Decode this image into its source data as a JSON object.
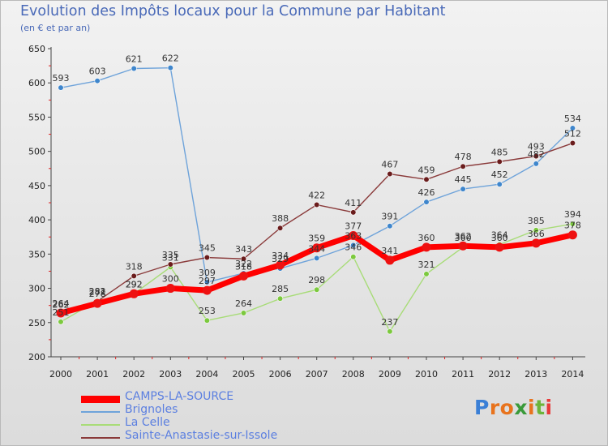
{
  "title": "Evolution des Impôts locaux pour la Commune par Habitant",
  "subtitle": "(en € et par an)",
  "logo": {
    "text": "Proxiti",
    "colors": [
      "#3a7fd6",
      "#e8731d",
      "#e8731d",
      "#3a9a3a",
      "#e8731d",
      "#6cb43a",
      "#e83a3a"
    ]
  },
  "chart_data": {
    "type": "line",
    "x": [
      "2000",
      "2001",
      "2002",
      "2003",
      "2004",
      "2005",
      "2006",
      "2007",
      "2008",
      "2009",
      "2010",
      "2011",
      "2012",
      "2013",
      "2014"
    ],
    "y_ticks": [
      200,
      250,
      300,
      350,
      400,
      450,
      500,
      550,
      600,
      650
    ],
    "ylim": [
      200,
      650
    ],
    "grid": false,
    "legend_position": "bottom-left",
    "series": [
      {
        "name": "CAMPS-LA-SOURCE",
        "color": "#ff0000",
        "marker_color": "#ee1111",
        "width": 7,
        "values": [
          264,
          278,
          292,
          300,
          297,
          318,
          334,
          359,
          377,
          341,
          360,
          362,
          360,
          366,
          378
        ],
        "labels": [
          "264",
          "278",
          "292",
          "300",
          "297",
          "318",
          "334",
          "359",
          "377",
          "341",
          "360",
          "362",
          "360",
          "366",
          "378"
        ]
      },
      {
        "name": "Brignoles",
        "color": "#6ea3da",
        "marker_color": "#3f86cc",
        "width": 1.4,
        "values": [
          593,
          603,
          621,
          622,
          309,
          322,
          329,
          344,
          363,
          391,
          426,
          445,
          452,
          482,
          534
        ],
        "labels": [
          "593",
          "603",
          "621",
          "622",
          "309",
          "322",
          "329",
          "344",
          "363",
          "391",
          "426",
          "445",
          "452",
          "482",
          "534"
        ]
      },
      {
        "name": "La Celle",
        "color": "#a8dc78",
        "marker_color": "#7cc93e",
        "width": 1.4,
        "values": [
          251,
          282,
          292,
          331,
          253,
          264,
          285,
          298,
          346,
          237,
          321,
          360,
          364,
          385,
          394
        ],
        "labels": [
          "251",
          "282",
          "292",
          "331",
          "253",
          "264",
          "285",
          "298",
          "346",
          "237",
          "321",
          "360",
          "364",
          "385",
          "394"
        ]
      },
      {
        "name": "Sainte-Anastasie-sur-Issole",
        "color": "#8a3a3a",
        "marker_color": "#6a1c1c",
        "width": 1.4,
        "values": [
          262,
          281,
          318,
          335,
          345,
          343,
          388,
          422,
          411,
          467,
          459,
          478,
          485,
          493,
          512
        ],
        "labels": [
          "262",
          "281",
          "318",
          "335",
          "345",
          "343",
          "388",
          "422",
          "411",
          "467",
          "459",
          "478",
          "485",
          "493",
          "512"
        ]
      }
    ]
  }
}
